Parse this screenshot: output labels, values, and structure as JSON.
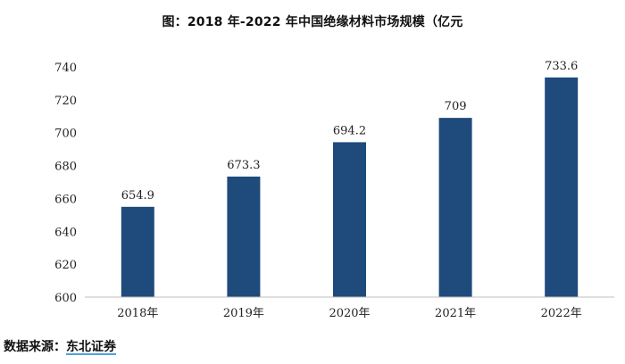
{
  "chart_data": {
    "type": "bar",
    "title": "图：2018 年-2022 年中国绝缘材料市场规模（亿元",
    "categories": [
      "2018年",
      "2019年",
      "2020年",
      "2021年",
      "2022年"
    ],
    "values": [
      654.9,
      673.3,
      694.2,
      709,
      733.6
    ],
    "value_labels": [
      "654.9",
      "673.3",
      "694.2",
      "709",
      "733.6"
    ],
    "ylim": [
      600,
      740
    ],
    "yticks": [
      600,
      620,
      640,
      660,
      680,
      700,
      720,
      740
    ],
    "xlabel": "",
    "ylabel": "",
    "grid": false,
    "legend": "none",
    "colors": {
      "bar": "#1f4a7c",
      "axis": "#bfbfbf",
      "text": "#222222"
    }
  },
  "source": {
    "prefix": "数据来源：",
    "org": "东北证券"
  }
}
